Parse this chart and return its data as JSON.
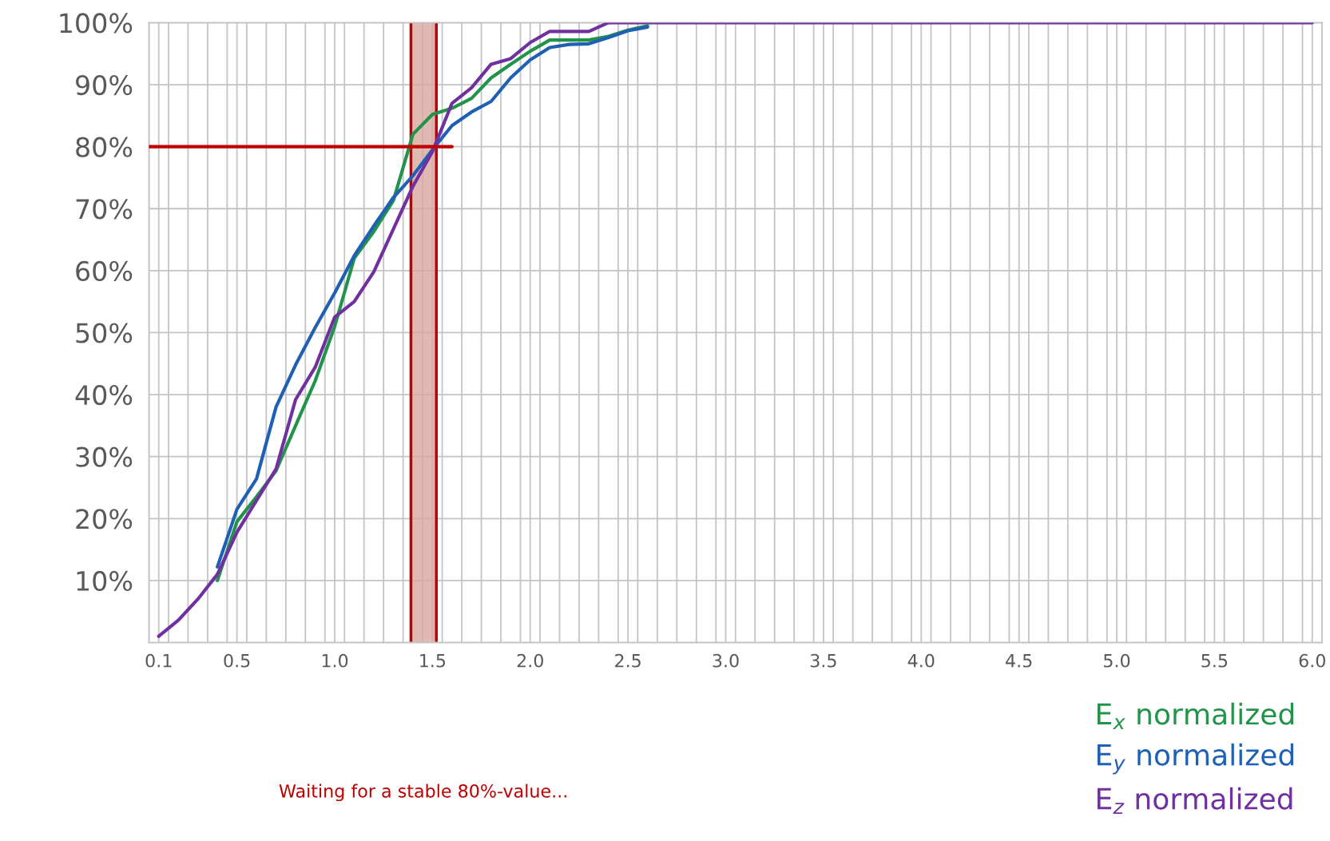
{
  "chart_data": {
    "type": "line",
    "x": [
      0.1,
      0.2,
      0.3,
      0.4,
      0.5,
      0.6,
      0.7,
      0.8,
      0.9,
      1.0,
      1.1,
      1.2,
      1.3,
      1.4,
      1.5,
      1.6,
      1.7,
      1.8,
      1.9,
      2.0,
      2.1,
      2.2,
      2.3,
      2.4,
      2.5,
      2.6,
      2.7,
      2.8,
      2.9,
      3.0,
      3.1,
      3.2,
      3.3,
      3.4,
      3.5,
      3.6,
      3.7,
      3.8,
      3.9,
      4.0,
      4.1,
      4.2,
      4.3,
      4.4,
      4.5,
      4.6,
      4.7,
      4.8,
      4.9,
      5.0,
      5.1,
      5.2,
      5.3,
      5.4,
      5.5,
      5.6,
      5.7,
      5.8,
      5.9,
      6.0
    ],
    "series": [
      {
        "name": "E$_{x}$ normalized",
        "color": "#22934a",
        "values": [
          null,
          null,
          null,
          10,
          19.5,
          23.5,
          27.7,
          35,
          42.2,
          51,
          62,
          66.3,
          71.3,
          82,
          85.2,
          86.2,
          87.8,
          91.1,
          93.3,
          95.4,
          97.2,
          97.2,
          97.2,
          97.8,
          98.8,
          99.5,
          null,
          null,
          null,
          null,
          null,
          null,
          null,
          null,
          null,
          null,
          null,
          null,
          null,
          null,
          null,
          null,
          null,
          null,
          null,
          null,
          null,
          null,
          null,
          null,
          null,
          null,
          null,
          null,
          null,
          null,
          null,
          null,
          null,
          null
        ]
      },
      {
        "name": "E$_{y}$ normalized",
        "color": "#1f5fb4",
        "values": [
          null,
          null,
          null,
          12.2,
          21.5,
          26.4,
          38,
          44.8,
          50.8,
          56.4,
          62.4,
          67.2,
          71.8,
          75.3,
          79.5,
          83.4,
          85.6,
          87.3,
          91.1,
          94,
          96,
          96.5,
          96.6,
          97.6,
          98.7,
          99.3,
          null,
          null,
          null,
          null,
          null,
          null,
          null,
          null,
          null,
          null,
          null,
          null,
          null,
          null,
          null,
          null,
          null,
          null,
          null,
          null,
          null,
          null,
          null,
          null,
          null,
          null,
          null,
          null,
          null,
          null,
          null,
          null,
          null,
          null
        ]
      },
      {
        "name": "E$_{z}$ normalized",
        "color": "#7030a0",
        "values": [
          1,
          3.6,
          7,
          11,
          17.8,
          22.9,
          28,
          39.2,
          44.4,
          52.5,
          55,
          59.8,
          66.7,
          73.6,
          79.2,
          87,
          89.5,
          93.3,
          94.2,
          96.8,
          98.6,
          98.6,
          98.6,
          100,
          100,
          100,
          100,
          100,
          100,
          100,
          100,
          100,
          100,
          100,
          100,
          100,
          100,
          100,
          100,
          100,
          100,
          100,
          100,
          100,
          100,
          100,
          100,
          100,
          100,
          100,
          100,
          100,
          100,
          100,
          100,
          100,
          100,
          100,
          100,
          100
        ]
      },
      {
        "type": "line",
        "color": "#c00000",
        "x": [
          0.05,
          1.6
        ],
        "values": [
          80,
          80
        ]
      }
    ],
    "ref_lines": [
      {
        "axis": "x",
        "value": 1.39,
        "color": "#c00000"
      },
      {
        "axis": "x",
        "value": 1.52,
        "color": "#c00000"
      }
    ],
    "bands": [
      {
        "axis": "x",
        "from": 1.39,
        "to": 1.52,
        "color": "#d9a8a0"
      }
    ],
    "annotations": [
      "Waiting for a stable 80%-value..."
    ],
    "xlim": [
      0.05,
      6.05
    ],
    "ylim": [
      0,
      100
    ],
    "xticks": [
      0.1,
      0.5,
      {
        "value": 1,
        "label": "1.0"
      },
      1.5,
      {
        "value": 2,
        "label": "2.0"
      },
      2.5,
      {
        "value": 3,
        "label": "3.0"
      },
      3.5,
      {
        "value": 4,
        "label": "4.0"
      },
      4.5,
      {
        "value": 5,
        "label": "5.0"
      },
      5.5,
      {
        "value": 6,
        "label": "6.0"
      },
      {
        "value": 0.05,
        "label": null
      },
      {
        "value": 0.15,
        "label": null
      },
      {
        "value": 0.25,
        "label": null
      },
      {
        "value": 0.35,
        "label": null
      },
      {
        "value": 0.45,
        "label": null
      },
      {
        "value": 0.55,
        "label": null
      },
      {
        "value": 0.65,
        "label": null
      },
      {
        "value": 0.75,
        "label": null
      },
      {
        "value": 0.85,
        "label": null
      },
      {
        "value": 0.95,
        "label": null
      },
      {
        "value": 1.05,
        "label": null
      },
      {
        "value": 1.15,
        "label": null
      },
      {
        "value": 1.25,
        "label": null
      },
      {
        "value": 1.35,
        "label": null
      },
      {
        "value": 1.45,
        "label": null
      },
      {
        "value": 1.55,
        "label": null
      },
      {
        "value": 1.65,
        "label": null
      },
      {
        "value": 1.75,
        "label": null
      },
      {
        "value": 1.85,
        "label": null
      },
      {
        "value": 1.95,
        "label": null
      },
      {
        "value": 2.05,
        "label": null
      },
      {
        "value": 2.15,
        "label": null
      },
      {
        "value": 2.25,
        "label": null
      },
      {
        "value": 2.35,
        "label": null
      },
      {
        "value": 2.45,
        "label": null
      },
      {
        "value": 2.55,
        "label": null
      },
      {
        "value": 2.65,
        "label": null
      },
      {
        "value": 2.75,
        "label": null
      },
      {
        "value": 2.85,
        "label": null
      },
      {
        "value": 2.95,
        "label": null
      },
      {
        "value": 3.05,
        "label": null
      },
      {
        "value": 3.15,
        "label": null
      },
      {
        "value": 3.25,
        "label": null
      },
      {
        "value": 3.35,
        "label": null
      },
      {
        "value": 3.45,
        "label": null
      },
      {
        "value": 3.55,
        "label": null
      },
      {
        "value": 3.65,
        "label": null
      },
      {
        "value": 3.75,
        "label": null
      },
      {
        "value": 3.85,
        "label": null
      },
      {
        "value": 3.95,
        "label": null
      },
      {
        "value": 4.05,
        "label": null
      },
      {
        "value": 4.15,
        "label": null
      },
      {
        "value": 4.25,
        "label": null
      },
      {
        "value": 4.35,
        "label": null
      },
      {
        "value": 4.45,
        "label": null
      },
      {
        "value": 4.55,
        "label": null
      },
      {
        "value": 4.65,
        "label": null
      },
      {
        "value": 4.75,
        "label": null
      },
      {
        "value": 4.85,
        "label": null
      },
      {
        "value": 4.95,
        "label": null
      },
      {
        "value": 5.05,
        "label": null
      },
      {
        "value": 5.15,
        "label": null
      },
      {
        "value": 5.25,
        "label": null
      },
      {
        "value": 5.35,
        "label": null
      },
      {
        "value": 5.45,
        "label": null
      },
      {
        "value": 5.55,
        "label": null
      },
      {
        "value": 5.65,
        "label": null
      },
      {
        "value": 5.75,
        "label": null
      },
      {
        "value": 5.85,
        "label": null
      },
      {
        "value": 5.95,
        "label": null
      },
      {
        "value": 6.05,
        "label": null
      }
    ],
    "yticks": [
      {
        "value": 10,
        "label": "10%"
      },
      {
        "value": 20,
        "label": "20%"
      },
      {
        "value": 30,
        "label": "30%"
      },
      {
        "value": 40,
        "label": "40%"
      },
      {
        "value": 50,
        "label": "50%"
      },
      {
        "value": 60,
        "label": "60%"
      },
      {
        "value": 70,
        "label": "70%"
      },
      {
        "value": 80,
        "label": "80%"
      },
      {
        "value": 90,
        "label": "90%"
      },
      {
        "value": 100,
        "label": "100%"
      }
    ],
    "grid": true,
    "legend": "bottom right",
    "marker": "none",
    "line_style": "solid"
  }
}
